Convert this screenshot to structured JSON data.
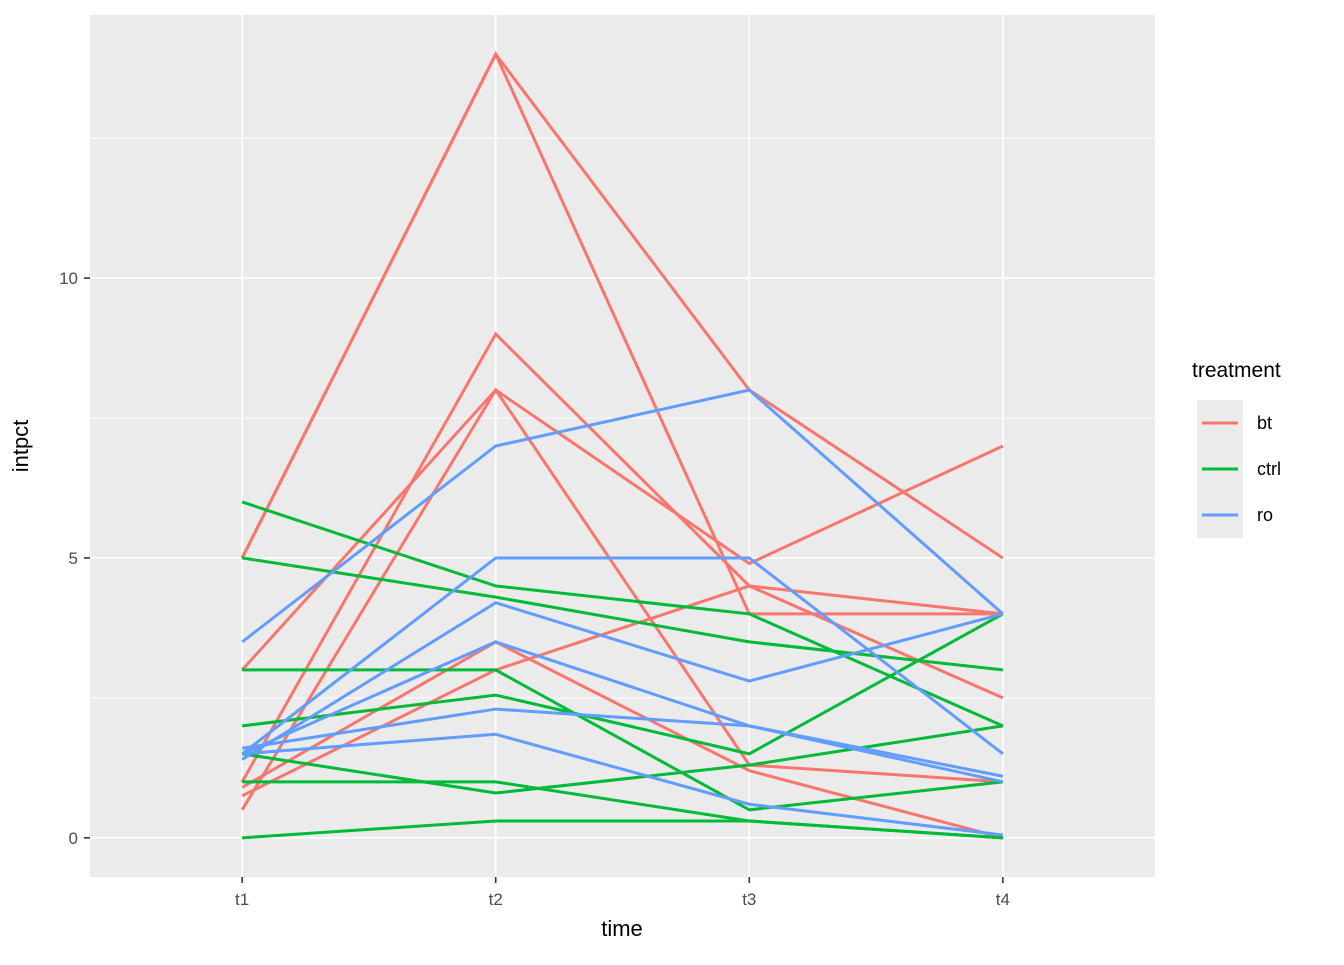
{
  "axes": {
    "x_label": "time",
    "y_label": "intpct",
    "x_categories": [
      "t1",
      "t2",
      "t3",
      "t4"
    ],
    "y_tick_labels": [
      "0",
      "5",
      "10"
    ],
    "y_tick_values": [
      0,
      5,
      10
    ],
    "y_minor_values": [
      2.5,
      7.5,
      12.5
    ]
  },
  "legend": {
    "title": "treatment",
    "items": [
      {
        "label": "bt",
        "color": "#F8766D"
      },
      {
        "label": "ctrl",
        "color": "#00BA38"
      },
      {
        "label": "ro",
        "color": "#619CFF"
      }
    ]
  },
  "colors": {
    "panel_background": "#EBEBEB",
    "grid": "#FFFFFF",
    "tick_mark": "#333333",
    "legend_key_background": "#EBEBEB"
  },
  "chart_data": {
    "type": "line",
    "title": "",
    "xlabel": "time",
    "ylabel": "intpct",
    "x": [
      "t1",
      "t2",
      "t3",
      "t4"
    ],
    "ylim": [
      -0.7,
      14.7
    ],
    "y_major_gridlines": [
      0,
      5,
      10
    ],
    "y_minor_gridlines": [
      2.5,
      7.5,
      12.5
    ],
    "grid": "on",
    "legend_position": "right",
    "series": [
      {
        "name": "bt",
        "color": "#F8766D",
        "subjects": [
          [
            5,
            14,
            8,
            5
          ],
          [
            5,
            14,
            4,
            4
          ],
          [
            1,
            9,
            4.5,
            2.5
          ],
          [
            0.5,
            8,
            4.9,
            7
          ],
          [
            3,
            8,
            1.3,
            1
          ],
          [
            0.9,
            3.5,
            1.2,
            0
          ],
          [
            0.75,
            3,
            4.5,
            4
          ]
        ]
      },
      {
        "name": "ctrl",
        "color": "#00BA38",
        "subjects": [
          [
            6,
            4.5,
            4,
            2
          ],
          [
            5,
            4.3,
            3.5,
            3
          ],
          [
            3,
            3,
            0.5,
            1
          ],
          [
            2,
            2.55,
            1.5,
            4
          ],
          [
            1.5,
            0.8,
            1.3,
            2
          ],
          [
            1,
            1,
            0.3,
            0
          ],
          [
            0,
            0.3,
            0.3,
            0
          ]
        ]
      },
      {
        "name": "ro",
        "color": "#619CFF",
        "subjects": [
          [
            3.5,
            7,
            8,
            4
          ],
          [
            1.5,
            5,
            5,
            1.5
          ],
          [
            1.4,
            4.2,
            2.8,
            4
          ],
          [
            1.5,
            3.5,
            2,
            1
          ],
          [
            1.6,
            2.3,
            2,
            1.1
          ],
          [
            1.5,
            1.85,
            0.6,
            0.05
          ]
        ]
      }
    ]
  }
}
